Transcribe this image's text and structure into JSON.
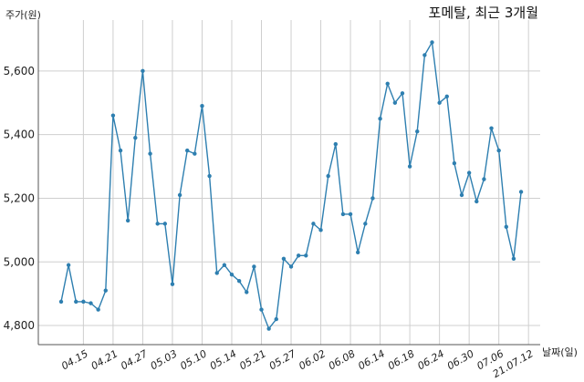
{
  "chart_data": {
    "type": "line",
    "title": "포메탈, 최근 3개월",
    "xlabel": "날짜(일)",
    "ylabel": "주가(원)",
    "ylim": [
      4740,
      5760
    ],
    "yticks": [
      4800,
      5000,
      5200,
      5400,
      5600
    ],
    "ytick_labels": [
      "4,800",
      "5,000",
      "5,200",
      "5,400",
      "5,600"
    ],
    "xtick_labels": [
      "04.15",
      "04.21",
      "04.27",
      "05.03",
      "05.10",
      "05.14",
      "05.21",
      "05.27",
      "06.02",
      "06.08",
      "06.14",
      "06.18",
      "06.24",
      "06.30",
      "07.06",
      "21.07.12"
    ],
    "xtick_index": [
      3,
      7,
      11,
      15,
      19,
      23,
      27,
      31,
      35,
      39,
      43,
      47,
      51,
      55,
      59,
      63
    ],
    "grid": true,
    "line_color": "#2e7fb0",
    "series": [
      {
        "values": [
          4875,
          4990,
          4875,
          4875,
          4870,
          4850,
          4910,
          5460,
          5350,
          5130,
          5390,
          5600,
          5340,
          5120,
          5120,
          4930,
          5210,
          5350,
          5340,
          5490,
          5270,
          4965,
          4990,
          4960,
          4940,
          4905,
          4985,
          4850,
          4790,
          4820,
          5010,
          4985,
          5020,
          5020,
          5120,
          5100,
          5270,
          5370,
          5150,
          5150,
          5030,
          5120,
          5200,
          5450,
          5560,
          5500,
          5530,
          5300,
          5410,
          5650,
          5690,
          5500,
          5520,
          5310,
          5210,
          5280,
          5190,
          5260,
          5420,
          5350,
          5110,
          5010,
          5220
        ]
      }
    ]
  }
}
